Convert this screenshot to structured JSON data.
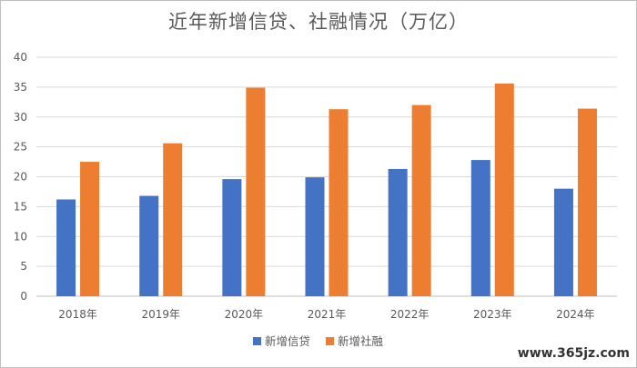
{
  "chart_data": {
    "type": "bar",
    "title": "近年新增信贷、社融情况（万亿）",
    "categories": [
      "2018年",
      "2019年",
      "2020年",
      "2021年",
      "2022年",
      "2023年",
      "2024年"
    ],
    "series": [
      {
        "name": "新增信贷",
        "values": [
          16.2,
          16.8,
          19.6,
          19.9,
          21.3,
          22.8,
          18.0
        ]
      },
      {
        "name": "新增社融",
        "values": [
          22.5,
          25.6,
          34.9,
          31.3,
          32.0,
          35.6,
          31.4
        ]
      }
    ],
    "ylim": [
      0,
      40
    ],
    "yticks": [
      0,
      5,
      10,
      15,
      20,
      25,
      30,
      35,
      40
    ],
    "grid": true,
    "legend_position": "bottom",
    "colors": [
      "#4472c4",
      "#ed7d31"
    ]
  },
  "watermark": "www.365jz.com"
}
